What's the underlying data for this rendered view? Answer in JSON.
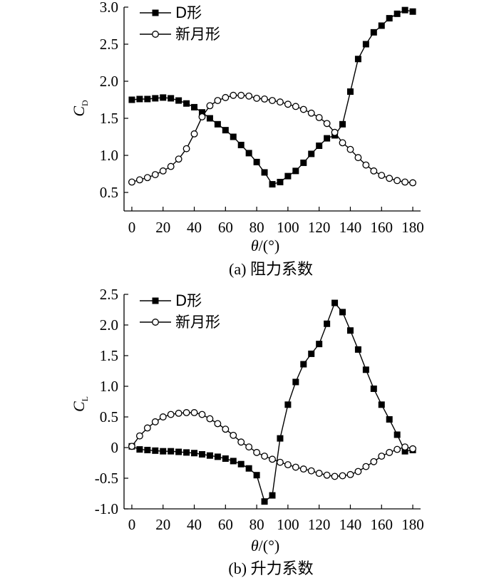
{
  "chart_data": [
    {
      "type": "line",
      "panel": "a",
      "caption": "(a) 阻力系数",
      "xlabel_symbol": "θ",
      "xlabel_unit": "/(°)",
      "ylabel_symbol": "C",
      "ylabel_subscript": "D",
      "xlim": [
        -5,
        185
      ],
      "ylim": [
        0.25,
        3.0
      ],
      "xticks": [
        0,
        20,
        40,
        60,
        80,
        100,
        120,
        140,
        160,
        180
      ],
      "xtick_labels": [
        "0",
        "20",
        "40",
        "60",
        "80",
        "100",
        "120",
        "140",
        "160",
        "180"
      ],
      "yticks": [
        0.5,
        1.0,
        1.5,
        2.0,
        2.5,
        3.0
      ],
      "ytick_labels": [
        "0.5",
        "1.0",
        "1.5",
        "2.0",
        "2.5",
        "3.0"
      ],
      "legend_position": "top-left",
      "series": [
        {
          "name": "D形",
          "marker": "filled-square",
          "x": [
            0,
            5,
            10,
            15,
            20,
            25,
            30,
            35,
            40,
            45,
            50,
            55,
            60,
            65,
            70,
            75,
            80,
            85,
            90,
            95,
            100,
            105,
            110,
            115,
            120,
            125,
            130,
            135,
            140,
            145,
            150,
            155,
            160,
            165,
            170,
            175,
            180
          ],
          "y": [
            1.75,
            1.76,
            1.76,
            1.77,
            1.78,
            1.77,
            1.74,
            1.7,
            1.65,
            1.58,
            1.5,
            1.42,
            1.34,
            1.25,
            1.14,
            1.03,
            0.91,
            0.77,
            0.61,
            0.64,
            0.72,
            0.79,
            0.9,
            1.02,
            1.13,
            1.23,
            1.27,
            1.42,
            1.86,
            2.3,
            2.5,
            2.66,
            2.75,
            2.85,
            2.91,
            2.96,
            2.94
          ]
        },
        {
          "name": "新月形",
          "marker": "open-circle",
          "x": [
            0,
            5,
            10,
            15,
            20,
            25,
            30,
            35,
            40,
            45,
            50,
            55,
            60,
            65,
            70,
            75,
            80,
            85,
            90,
            95,
            100,
            105,
            110,
            115,
            120,
            125,
            130,
            135,
            140,
            145,
            150,
            155,
            160,
            165,
            170,
            175,
            180
          ],
          "y": [
            0.64,
            0.67,
            0.7,
            0.74,
            0.79,
            0.85,
            0.95,
            1.09,
            1.29,
            1.52,
            1.67,
            1.74,
            1.78,
            1.81,
            1.81,
            1.8,
            1.77,
            1.76,
            1.74,
            1.72,
            1.69,
            1.66,
            1.62,
            1.57,
            1.51,
            1.43,
            1.31,
            1.17,
            1.08,
            0.97,
            0.87,
            0.79,
            0.73,
            0.69,
            0.66,
            0.64,
            0.63
          ]
        }
      ]
    },
    {
      "type": "line",
      "panel": "b",
      "caption": "(b) 升力系数",
      "xlabel_symbol": "θ",
      "xlabel_unit": "/(°)",
      "ylabel_symbol": "C",
      "ylabel_subscript": "L",
      "xlim": [
        -5,
        185
      ],
      "ylim": [
        -1.0,
        2.5
      ],
      "xticks": [
        0,
        20,
        40,
        60,
        80,
        100,
        120,
        140,
        160,
        180
      ],
      "xtick_labels": [
        "0",
        "20",
        "40",
        "60",
        "80",
        "100",
        "120",
        "140",
        "160",
        "180"
      ],
      "yticks": [
        -1.0,
        -0.5,
        0,
        0.5,
        1.0,
        1.5,
        2.0,
        2.5
      ],
      "ytick_labels": [
        "-1.0",
        "-0.5",
        "0",
        "0.5",
        "1.0",
        "1.5",
        "2.0",
        "2.5"
      ],
      "legend_position": "top-left",
      "series": [
        {
          "name": "D形",
          "marker": "filled-square",
          "x": [
            0,
            5,
            10,
            15,
            20,
            25,
            30,
            35,
            40,
            45,
            50,
            55,
            60,
            65,
            70,
            75,
            80,
            85,
            90,
            95,
            100,
            105,
            110,
            115,
            120,
            125,
            130,
            135,
            140,
            145,
            150,
            155,
            160,
            165,
            170,
            175,
            180
          ],
          "y": [
            0.02,
            -0.03,
            -0.04,
            -0.05,
            -0.06,
            -0.06,
            -0.07,
            -0.08,
            -0.09,
            -0.11,
            -0.13,
            -0.15,
            -0.18,
            -0.22,
            -0.27,
            -0.34,
            -0.45,
            -0.88,
            -0.78,
            0.15,
            0.7,
            1.07,
            1.36,
            1.53,
            1.69,
            2.02,
            2.36,
            2.21,
            1.91,
            1.6,
            1.27,
            0.96,
            0.7,
            0.46,
            0.21,
            -0.06,
            -0.04
          ]
        },
        {
          "name": "新月形",
          "marker": "open-circle",
          "x": [
            0,
            5,
            10,
            15,
            20,
            25,
            30,
            35,
            40,
            45,
            50,
            55,
            60,
            65,
            70,
            75,
            80,
            85,
            90,
            95,
            100,
            105,
            110,
            115,
            120,
            125,
            130,
            135,
            140,
            145,
            150,
            155,
            160,
            165,
            170,
            175,
            180
          ],
          "y": [
            0.02,
            0.19,
            0.32,
            0.42,
            0.5,
            0.54,
            0.56,
            0.57,
            0.57,
            0.54,
            0.47,
            0.39,
            0.3,
            0.2,
            0.09,
            0.01,
            -0.08,
            -0.14,
            -0.19,
            -0.24,
            -0.28,
            -0.32,
            -0.35,
            -0.38,
            -0.42,
            -0.45,
            -0.47,
            -0.46,
            -0.44,
            -0.39,
            -0.31,
            -0.23,
            -0.14,
            -0.08,
            -0.03,
            0.01,
            -0.02
          ]
        }
      ]
    }
  ]
}
